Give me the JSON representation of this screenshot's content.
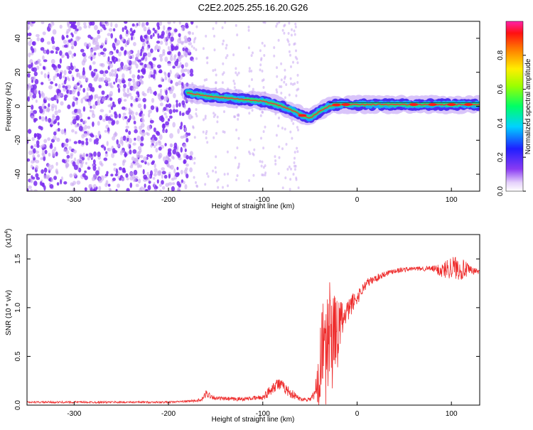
{
  "page_title": "C2E2.2025.255.16.20.G26",
  "colors": {
    "snr_line": "#ee2b2b",
    "frame": "#000000",
    "sparse_scatter": "#c9a8f2",
    "dense_scatter": "#7a2cf0",
    "signal_core": "#ff1a1a"
  },
  "chart_data": [
    {
      "id": "spectrogram",
      "type": "heatmap",
      "title": "C2E2.2025.255.16.20.G26",
      "xlabel": "Height of straight line (km)",
      "ylabel": "Frequency (Hz)",
      "xlim": [
        -350,
        130
      ],
      "ylim": [
        -50,
        50
      ],
      "xticks": [
        -300,
        -200,
        -100,
        0,
        100
      ],
      "yticks": [
        -40,
        -20,
        0,
        20,
        40
      ],
      "colorbar": {
        "label": "Normalized spectral amplitude",
        "range": [
          0,
          1
        ],
        "ticks": [
          "0.0",
          "0.2",
          "0.4",
          "0.6",
          "0.8"
        ],
        "tick_values": [
          0,
          0.2,
          0.4,
          0.6,
          0.8
        ]
      },
      "signal_trace": {
        "x": [
          -180,
          -160,
          -140,
          -120,
          -100,
          -85,
          -70,
          -60,
          -50,
          -40,
          -30,
          -20,
          -10,
          0,
          20,
          50,
          80,
          100,
          130
        ],
        "freq_hz": [
          8,
          6,
          5,
          4,
          3,
          1,
          -2,
          -5,
          -7,
          -3,
          0,
          1,
          1,
          1,
          1,
          1,
          1,
          1,
          1
        ]
      },
      "noise_region_x": [
        -350,
        -175
      ]
    },
    {
      "id": "snr",
      "type": "line",
      "xlabel": "Height of straight line (km)",
      "ylabel": "SNR (10 * v/v)",
      "y_scale_label": "(x10",
      "y_scale_exponent": "4",
      "xlim": [
        -350,
        130
      ],
      "ylim": [
        0,
        1.75
      ],
      "xticks": [
        -300,
        -200,
        -100,
        0,
        100
      ],
      "yticks": [
        "0.0",
        "0.5",
        "1.0",
        "1.5"
      ],
      "ytick_values": [
        0,
        0.5,
        1.0,
        1.5
      ],
      "series": [
        {
          "name": "SNR",
          "x": [
            -350,
            -300,
            -250,
            -200,
            -180,
            -165,
            -160,
            -150,
            -130,
            -110,
            -100,
            -95,
            -90,
            -85,
            -80,
            -70,
            -60,
            -50,
            -45,
            -40,
            -35,
            -30,
            -25,
            -20,
            -15,
            -10,
            -5,
            0,
            5,
            10,
            20,
            30,
            40,
            60,
            80,
            90,
            100,
            110,
            120,
            130
          ],
          "values": [
            0.03,
            0.03,
            0.03,
            0.03,
            0.04,
            0.05,
            0.12,
            0.07,
            0.06,
            0.07,
            0.08,
            0.12,
            0.18,
            0.22,
            0.2,
            0.12,
            0.06,
            0.06,
            0.1,
            0.35,
            0.7,
            0.8,
            0.75,
            0.8,
            0.85,
            0.95,
            1.05,
            1.1,
            1.18,
            1.25,
            1.3,
            1.35,
            1.38,
            1.4,
            1.4,
            1.38,
            1.42,
            1.4,
            1.38,
            1.37
          ],
          "noise_amp": [
            0.01,
            0.01,
            0.01,
            0.01,
            0.01,
            0.02,
            0.04,
            0.02,
            0.02,
            0.02,
            0.03,
            0.05,
            0.06,
            0.07,
            0.06,
            0.05,
            0.02,
            0.02,
            0.08,
            0.35,
            0.55,
            0.5,
            0.4,
            0.3,
            0.2,
            0.12,
            0.1,
            0.08,
            0.06,
            0.05,
            0.04,
            0.03,
            0.03,
            0.02,
            0.03,
            0.08,
            0.12,
            0.12,
            0.05,
            0.02
          ]
        }
      ]
    }
  ]
}
